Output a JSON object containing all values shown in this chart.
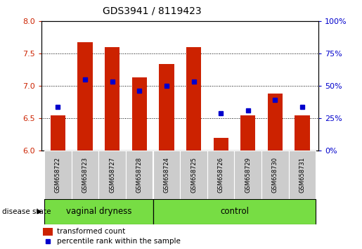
{
  "title": "GDS3941 / 8119423",
  "samples": [
    "GSM658722",
    "GSM658723",
    "GSM658727",
    "GSM658728",
    "GSM658724",
    "GSM658725",
    "GSM658726",
    "GSM658729",
    "GSM658730",
    "GSM658731"
  ],
  "bar_values": [
    6.55,
    7.68,
    7.6,
    7.13,
    7.34,
    7.6,
    6.2,
    6.55,
    6.88,
    6.55
  ],
  "dot_values": [
    6.68,
    7.1,
    7.07,
    6.92,
    7.0,
    7.07,
    6.58,
    6.62,
    6.78,
    6.68
  ],
  "groups": [
    {
      "label": "vaginal dryness",
      "start": 0,
      "end": 4
    },
    {
      "label": "control",
      "start": 4,
      "end": 10
    }
  ],
  "ylim": [
    6.0,
    8.0
  ],
  "yticks": [
    6.0,
    6.5,
    7.0,
    7.5,
    8.0
  ],
  "right_yticks": [
    0,
    25,
    50,
    75,
    100
  ],
  "bar_color": "#cc2200",
  "dot_color": "#0000cc",
  "bar_bottom": 6.0,
  "group_bg_color": "#77dd44",
  "tick_label_bg": "#cccccc",
  "legend_bar_label": "transformed count",
  "legend_dot_label": "percentile rank within the sample"
}
